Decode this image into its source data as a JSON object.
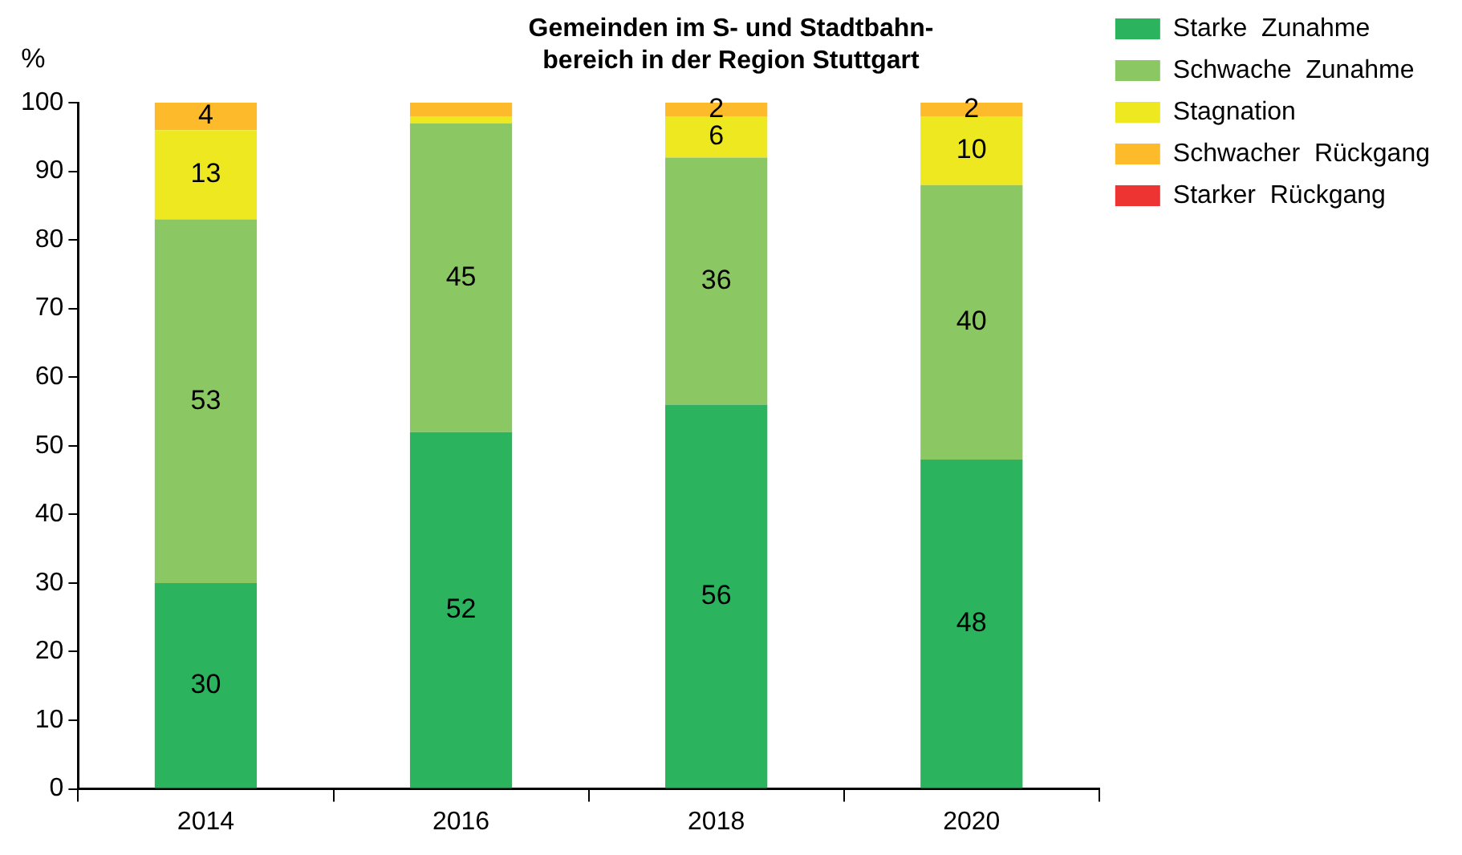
{
  "chart_data": {
    "type": "bar",
    "stacked": true,
    "title": "Gemeinden im S- und Stadtbahn-\nbereich in der Region Stuttgart",
    "ylabel": "%",
    "categories": [
      "2014",
      "2016",
      "2018",
      "2020"
    ],
    "series": [
      {
        "name": "Starke  Zunahme",
        "color": "#2bb35e",
        "values": [
          30,
          52,
          56,
          48
        ],
        "value_labels": [
          "30",
          "52",
          "56",
          "48"
        ]
      },
      {
        "name": "Schwache  Zunahme",
        "color": "#8bc863",
        "values": [
          53,
          45,
          36,
          40
        ],
        "value_labels": [
          "53",
          "45",
          "36",
          "40"
        ]
      },
      {
        "name": "Stagnation",
        "color": "#ede81f",
        "values": [
          13,
          1,
          6,
          10
        ],
        "value_labels": [
          "13",
          null,
          "6",
          "10"
        ]
      },
      {
        "name": "Schwacher  Rückgang",
        "color": "#fdbb2c",
        "values": [
          4,
          2,
          2,
          2
        ],
        "value_labels": [
          "4",
          null,
          "2",
          "2"
        ]
      },
      {
        "name": "Starker  Rückgang",
        "color": "#ee3333",
        "values": [
          0,
          0,
          0,
          0
        ],
        "value_labels": [
          null,
          null,
          null,
          null
        ]
      }
    ],
    "ylim": [
      0,
      100
    ],
    "yticks": [
      0,
      10,
      20,
      30,
      40,
      50,
      60,
      70,
      80,
      90,
      100
    ],
    "grid": false,
    "legend": "top right"
  }
}
